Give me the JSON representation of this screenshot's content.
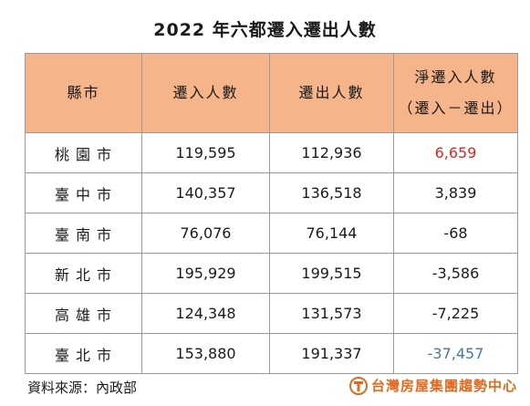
{
  "title": "2022 年六都遷入遷出人數",
  "table": {
    "headers": {
      "city": "縣市",
      "move_in": "遷入人數",
      "move_out": "遷出人數",
      "net_line1": "淨遷入人數",
      "net_line2": "（遷入－遷出）"
    },
    "rows": [
      {
        "city": "桃園市",
        "move_in": "119,595",
        "move_out": "112,936",
        "net": "6,659"
      },
      {
        "city": "臺中市",
        "move_in": "140,357",
        "move_out": "136,518",
        "net": "3,839"
      },
      {
        "city": "臺南市",
        "move_in": "76,076",
        "move_out": "76,144",
        "net": "-68"
      },
      {
        "city": "新北市",
        "move_in": "195,929",
        "move_out": "199,515",
        "net": "-3,586"
      },
      {
        "city": "高雄市",
        "move_in": "124,348",
        "move_out": "131,573",
        "net": "-7,225"
      },
      {
        "city": "臺北市",
        "move_in": "153,880",
        "move_out": "191,337",
        "net": "-37,457"
      }
    ]
  },
  "footer": {
    "source": "資料來源：內政部",
    "brand": "台灣房屋集團趨勢中心",
    "brand_color": "#e06a1f"
  },
  "colors": {
    "header_bg": "#f5b48a",
    "net_positive_highlight": "#e02424",
    "net_negative_highlight": "#4a78a6"
  }
}
